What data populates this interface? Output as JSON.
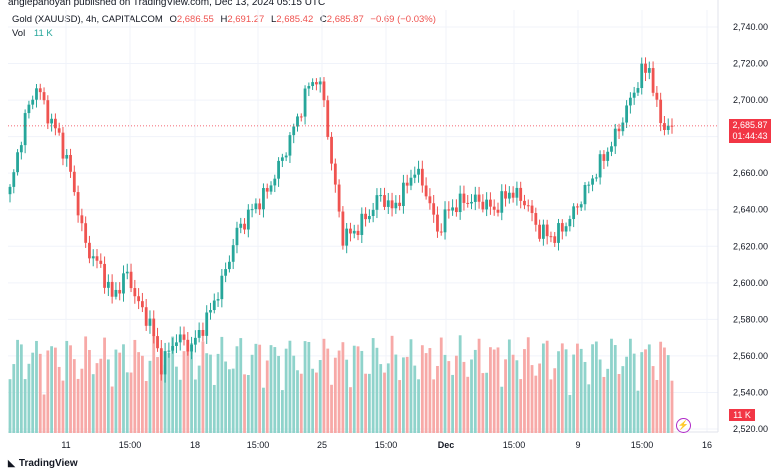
{
  "header": {
    "published": "anglepanoyan published on TradingView.com, Dec 13, 2024 05:15 UTC"
  },
  "legend": {
    "symbol": "Gold (XAUUSD), 4h, CAPITALCOM",
    "o_label": "O",
    "o": "2,686.55",
    "h_label": "H",
    "h": "2,691.27",
    "l_label": "L",
    "l": "2,685.42",
    "c_label": "C",
    "c": "2,685.87",
    "change": "−0.69 (−0.03%)"
  },
  "volume_legend": {
    "label": "Vol",
    "value": "11 K"
  },
  "price_tag": {
    "price": "2,685.87",
    "countdown": "01:44:43"
  },
  "volume_tag": "11 K",
  "footer": {
    "brand": "TradingView"
  },
  "colors": {
    "up": "#26a69a",
    "down": "#ef5350",
    "vol_up": "#8fd3cb",
    "vol_down": "#f7a9a7",
    "grid": "#f0f3fa",
    "last_price": "#f23645"
  },
  "icons": {
    "flash": "lightning-icon",
    "brand": "tradingview-logo-icon"
  },
  "chart_data": {
    "type": "candlestick",
    "title": "Gold (XAUUSD), 4h, CAPITALCOM",
    "y_ticks": [
      "2,740.00",
      "2,720.00",
      "2,700.00",
      "2,680.00",
      "2,660.00",
      "2,640.00",
      "2,620.00",
      "2,600.00",
      "2,580.00",
      "2,560.00",
      "2,540.00",
      "2,520.00"
    ],
    "y_tick_values": [
      2740,
      2720,
      2700,
      2680,
      2660,
      2640,
      2620,
      2600,
      2580,
      2560,
      2540,
      2520
    ],
    "x_ticks": [
      "11",
      "15:00",
      "18",
      "15:00",
      "25",
      "15:00",
      "Dec",
      "15:00",
      "9",
      "15:00",
      "16"
    ],
    "ylim": [
      2520,
      2745
    ],
    "last_price": 2685.87,
    "grid": true,
    "anchors": [
      [
        0,
        2650
      ],
      [
        4,
        2690
      ],
      [
        7,
        2708
      ],
      [
        10,
        2692
      ],
      [
        13,
        2680
      ],
      [
        16,
        2660
      ],
      [
        20,
        2620
      ],
      [
        24,
        2608
      ],
      [
        27,
        2592
      ],
      [
        31,
        2605
      ],
      [
        34,
        2588
      ],
      [
        37,
        2578
      ],
      [
        40,
        2555
      ],
      [
        44,
        2570
      ],
      [
        48,
        2565
      ],
      [
        52,
        2580
      ],
      [
        56,
        2600
      ],
      [
        60,
        2628
      ],
      [
        64,
        2640
      ],
      [
        68,
        2650
      ],
      [
        72,
        2668
      ],
      [
        76,
        2690
      ],
      [
        79,
        2708
      ],
      [
        81,
        2712
      ],
      [
        83,
        2700
      ],
      [
        85,
        2665
      ],
      [
        88,
        2625
      ],
      [
        91,
        2628
      ],
      [
        95,
        2638
      ],
      [
        98,
        2648
      ],
      [
        101,
        2640
      ],
      [
        104,
        2650
      ],
      [
        107,
        2662
      ],
      [
        110,
        2650
      ],
      [
        113,
        2628
      ],
      [
        116,
        2640
      ],
      [
        120,
        2645
      ],
      [
        124,
        2645
      ],
      [
        128,
        2640
      ],
      [
        132,
        2650
      ],
      [
        136,
        2645
      ],
      [
        140,
        2628
      ],
      [
        144,
        2625
      ],
      [
        148,
        2635
      ],
      [
        152,
        2650
      ],
      [
        156,
        2665
      ],
      [
        160,
        2680
      ],
      [
        164,
        2700
      ],
      [
        167,
        2715
      ],
      [
        169,
        2718
      ],
      [
        171,
        2695
      ],
      [
        173,
        2685
      ],
      [
        175,
        2686
      ]
    ],
    "volume_scale_max": 100
  }
}
